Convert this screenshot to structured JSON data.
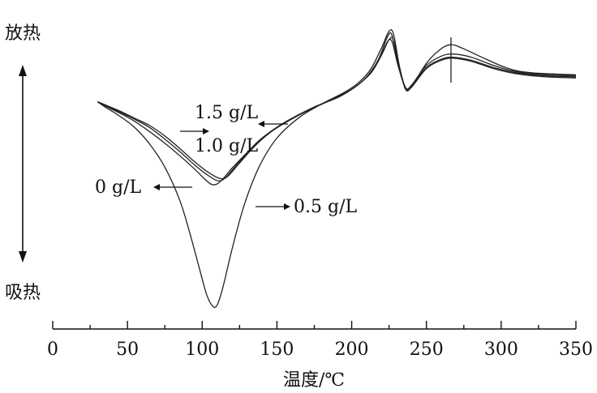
{
  "chart_data": {
    "type": "line",
    "xlabel": "温度/℃",
    "xlim": [
      0,
      350
    ],
    "xticks": [
      0,
      50,
      100,
      150,
      200,
      250,
      300,
      350
    ],
    "y_top_label": "放热",
    "y_bottom_label": "吸热",
    "series": [
      {
        "name": "0 g/L",
        "points": [
          [
            30,
            -2.0
          ],
          [
            35,
            -2.4
          ],
          [
            45,
            -3.1
          ],
          [
            55,
            -3.9
          ],
          [
            65,
            -4.9
          ],
          [
            75,
            -6.0
          ],
          [
            85,
            -7.2
          ],
          [
            95,
            -8.5
          ],
          [
            102,
            -9.5
          ],
          [
            107,
            -10.0
          ],
          [
            112,
            -9.7
          ],
          [
            120,
            -8.4
          ],
          [
            130,
            -6.9
          ],
          [
            140,
            -5.5
          ],
          [
            155,
            -4.0
          ],
          [
            170,
            -2.9
          ],
          [
            185,
            -1.9
          ],
          [
            200,
            -0.8
          ],
          [
            210,
            0.4
          ],
          [
            218,
            2.1
          ],
          [
            224,
            4.3
          ],
          [
            227,
            4.4
          ],
          [
            231,
            1.7
          ],
          [
            236,
            -0.6
          ],
          [
            240,
            -0.4
          ],
          [
            250,
            1.5
          ],
          [
            260,
            2.4
          ],
          [
            268,
            2.6
          ],
          [
            280,
            2.3
          ],
          [
            295,
            1.5
          ],
          [
            310,
            0.9
          ],
          [
            330,
            0.6
          ],
          [
            350,
            0.5
          ]
        ]
      },
      {
        "name": "0.5 g/L",
        "points": [
          [
            30,
            -2.0
          ],
          [
            35,
            -2.5
          ],
          [
            45,
            -3.4
          ],
          [
            55,
            -4.5
          ],
          [
            65,
            -6.1
          ],
          [
            75,
            -8.3
          ],
          [
            85,
            -11.5
          ],
          [
            92,
            -14.8
          ],
          [
            98,
            -18.0
          ],
          [
            103,
            -20.6
          ],
          [
            107,
            -21.7
          ],
          [
            110,
            -21.6
          ],
          [
            114,
            -19.8
          ],
          [
            120,
            -16.2
          ],
          [
            128,
            -12.0
          ],
          [
            138,
            -8.3
          ],
          [
            150,
            -5.5
          ],
          [
            165,
            -3.5
          ],
          [
            180,
            -2.2
          ],
          [
            195,
            -1.1
          ],
          [
            205,
            -0.1
          ],
          [
            213,
            1.2
          ],
          [
            220,
            3.2
          ],
          [
            225,
            4.8
          ],
          [
            228,
            4.5
          ],
          [
            232,
            1.4
          ],
          [
            236,
            -0.7
          ],
          [
            240,
            -0.5
          ],
          [
            250,
            1.7
          ],
          [
            258,
            2.9
          ],
          [
            266,
            3.5
          ],
          [
            275,
            3.1
          ],
          [
            290,
            2.1
          ],
          [
            305,
            1.2
          ],
          [
            320,
            0.8
          ],
          [
            350,
            0.6
          ]
        ]
      },
      {
        "name": "1.0 g/L",
        "points": [
          [
            30,
            -2.0
          ],
          [
            35,
            -2.3
          ],
          [
            45,
            -3.0
          ],
          [
            55,
            -3.7
          ],
          [
            65,
            -4.5
          ],
          [
            75,
            -5.6
          ],
          [
            85,
            -6.8
          ],
          [
            95,
            -8.1
          ],
          [
            103,
            -9.0
          ],
          [
            110,
            -9.6
          ],
          [
            115,
            -9.4
          ],
          [
            123,
            -8.1
          ],
          [
            133,
            -6.5
          ],
          [
            145,
            -5.0
          ],
          [
            160,
            -3.6
          ],
          [
            175,
            -2.5
          ],
          [
            190,
            -1.6
          ],
          [
            202,
            -0.6
          ],
          [
            212,
            0.7
          ],
          [
            219,
            2.3
          ],
          [
            224,
            3.8
          ],
          [
            227,
            3.8
          ],
          [
            231,
            1.5
          ],
          [
            236,
            -0.7
          ],
          [
            240,
            -0.5
          ],
          [
            250,
            1.3
          ],
          [
            260,
            2.1
          ],
          [
            268,
            2.3
          ],
          [
            280,
            2.0
          ],
          [
            295,
            1.3
          ],
          [
            310,
            0.8
          ],
          [
            330,
            0.5
          ],
          [
            350,
            0.4
          ]
        ]
      },
      {
        "name": "1.5 g/L",
        "points": [
          [
            30,
            -2.0
          ],
          [
            35,
            -2.3
          ],
          [
            45,
            -2.9
          ],
          [
            55,
            -3.6
          ],
          [
            65,
            -4.3
          ],
          [
            75,
            -5.3
          ],
          [
            85,
            -6.5
          ],
          [
            95,
            -7.8
          ],
          [
            104,
            -8.8
          ],
          [
            112,
            -9.4
          ],
          [
            117,
            -9.2
          ],
          [
            125,
            -7.9
          ],
          [
            135,
            -6.3
          ],
          [
            147,
            -4.8
          ],
          [
            162,
            -3.5
          ],
          [
            177,
            -2.4
          ],
          [
            192,
            -1.5
          ],
          [
            203,
            -0.5
          ],
          [
            213,
            0.8
          ],
          [
            220,
            2.5
          ],
          [
            225,
            4.0
          ],
          [
            228,
            3.9
          ],
          [
            232,
            1.3
          ],
          [
            236,
            -0.8
          ],
          [
            240,
            -0.6
          ],
          [
            250,
            1.2
          ],
          [
            260,
            2.0
          ],
          [
            268,
            2.2
          ],
          [
            280,
            1.9
          ],
          [
            295,
            1.2
          ],
          [
            310,
            0.7
          ],
          [
            330,
            0.4
          ],
          [
            350,
            0.3
          ]
        ]
      }
    ],
    "annotations": [
      "1.5 g/L",
      "1.0 g/L",
      "0 g/L",
      "0.5 g/L"
    ]
  }
}
